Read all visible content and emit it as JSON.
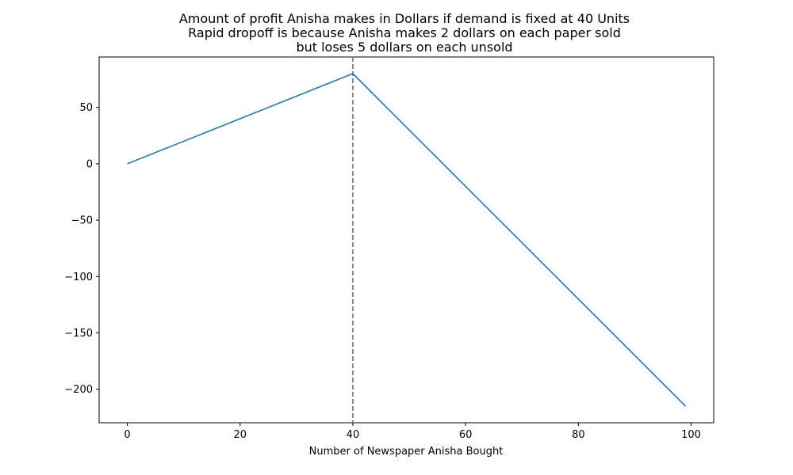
{
  "chart_data": {
    "type": "line",
    "title_lines": [
      "Amount of profit Anisha makes in Dollars if demand is fixed at 40 Units",
      "Rapid dropoff is because Anisha makes 2 dollars on each paper sold",
      "but loses 5 dollars on each unsold"
    ],
    "xlabel": "Number of Newspaper Anisha Bought",
    "ylabel": "",
    "xlim": [
      -5,
      104
    ],
    "ylim": [
      -229.75,
      94.75
    ],
    "x_ticks": [
      0,
      20,
      40,
      60,
      80,
      100
    ],
    "x_tick_labels": [
      "0",
      "20",
      "40",
      "60",
      "80",
      "100"
    ],
    "y_ticks": [
      50,
      0,
      -50,
      -100,
      -150,
      -200
    ],
    "y_tick_labels": [
      "50",
      "0",
      "−50",
      "−100",
      "−150",
      "−200"
    ],
    "series": [
      {
        "color": "#1f77b4",
        "x": [
          0,
          40,
          99
        ],
        "y": [
          0,
          80,
          -215
        ]
      }
    ],
    "reference_line": {
      "orientation": "vertical",
      "x": 40,
      "style": "dashed",
      "color": "#808080"
    },
    "grid": false,
    "legend": "none"
  }
}
